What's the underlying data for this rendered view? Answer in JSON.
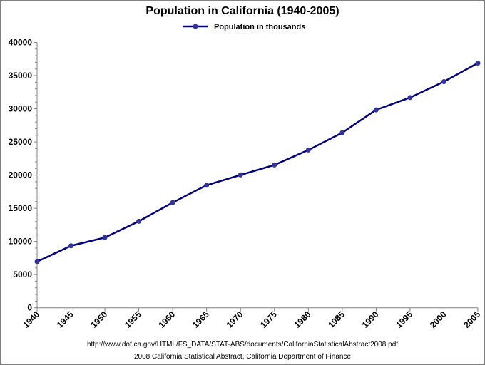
{
  "chart_data": {
    "type": "line",
    "title": "Population in California (1940-2005)",
    "xlabel": "",
    "ylabel": "",
    "x": [
      1940,
      1945,
      1950,
      1955,
      1960,
      1965,
      1970,
      1975,
      1980,
      1985,
      1990,
      1995,
      2000,
      2005
    ],
    "series": [
      {
        "name": "Population in thousands",
        "color": "#000080",
        "marker_color": "#333399",
        "values": [
          6950,
          9345,
          10590,
          13040,
          15865,
          18475,
          20020,
          21525,
          23780,
          26390,
          29830,
          31690,
          34090,
          36885
        ]
      }
    ],
    "xlim": [
      1940,
      2005
    ],
    "ylim": [
      0,
      40000
    ],
    "yticks": [
      0,
      5000,
      10000,
      15000,
      20000,
      25000,
      30000,
      35000,
      40000
    ],
    "xticks": [
      "1940",
      "1945",
      "1950",
      "1955",
      "1960",
      "1965",
      "1970",
      "1975",
      "1980",
      "1985",
      "1990",
      "1995",
      "2000",
      "2005"
    ],
    "grid": false,
    "legend_position": "top-center"
  },
  "footer": {
    "source_url": "http://www.dof.ca.gov/HTML/FS_DATA/STAT-ABS/documents/CaliforniaStatisticalAbstract2008.pdf",
    "citation": "2008 California Statistical Abstract, California Department of Finance"
  }
}
